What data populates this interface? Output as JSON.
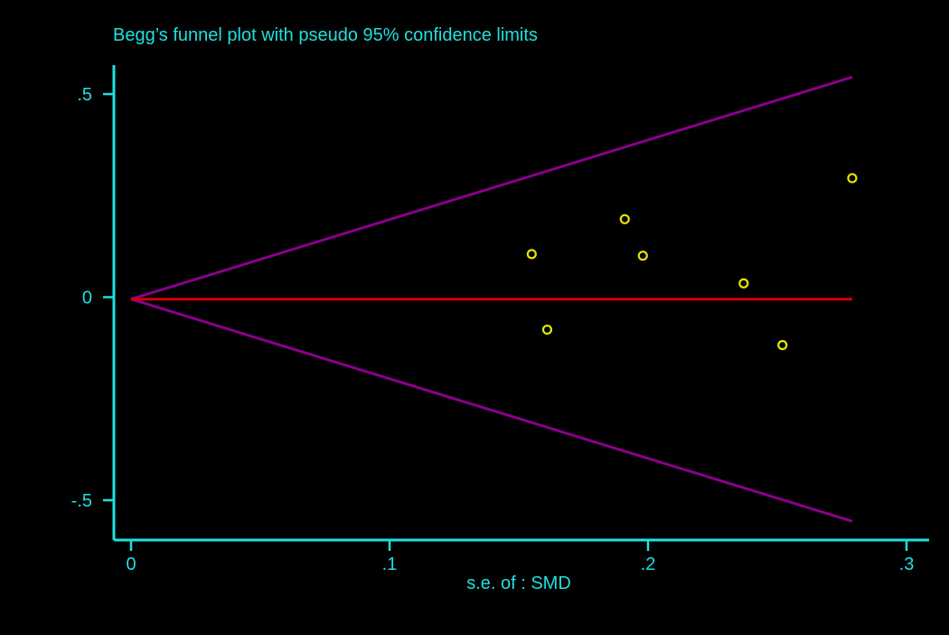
{
  "chart_data": {
    "type": "scatter",
    "title": "Begg’s funnel plot with pseudo 95% confidence  limits",
    "xlabel": "s.e. of : SMD",
    "ylabel": "",
    "xlim": [
      0,
      0.3
    ],
    "ylim": [
      -0.5,
      0.5
    ],
    "xticks": [
      0,
      0.1,
      0.2,
      0.3
    ],
    "xtick_labels": [
      "0",
      ".1",
      ".2",
      ".3"
    ],
    "yticks": [
      0.5,
      0,
      -0.5
    ],
    "ytick_labels": [
      ".5",
      "0",
      "-.5"
    ],
    "points": [
      {
        "x": 0.155,
        "y": 0.106
      },
      {
        "x": 0.161,
        "y": -0.08
      },
      {
        "x": 0.191,
        "y": 0.192
      },
      {
        "x": 0.198,
        "y": 0.102
      },
      {
        "x": 0.237,
        "y": 0.034
      },
      {
        "x": 0.252,
        "y": -0.118
      },
      {
        "x": 0.279,
        "y": 0.293
      }
    ],
    "pooled_estimate": -0.005,
    "ci_multiplier": 1.96,
    "se_max": 0.279,
    "grid": false,
    "legend": "none",
    "colors": {
      "axis": "#1fe0e0",
      "text": "#1fe0e0",
      "points": "#e6e600",
      "pooled_line": "#d40000",
      "limits": "#8a008a",
      "background": "#000000"
    }
  }
}
